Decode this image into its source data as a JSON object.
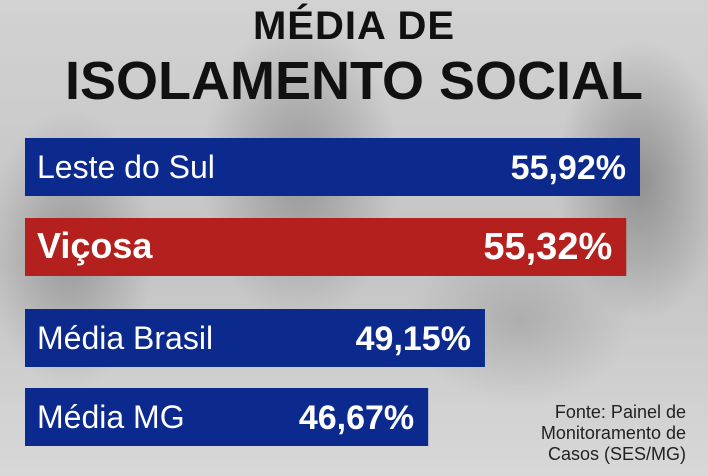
{
  "title_line1": "MÉDIA DE",
  "title_line2": "ISOLAMENTO SOCIAL",
  "source_lines": [
    "Fonte: Painel de",
    "Monitoramento de",
    "Casos (SES/MG)"
  ],
  "chart_data": {
    "type": "bar",
    "orientation": "horizontal",
    "categories": [
      "Leste do Sul",
      "Viçosa",
      "Média Brasil",
      "Média MG"
    ],
    "values": [
      55.92,
      55.32,
      49.15,
      46.67
    ],
    "value_labels": [
      "55,92%",
      "55,32%",
      "49,15%",
      "46,67%"
    ],
    "colors": [
      "#0c2a8e",
      "#b3201d",
      "#0c2a8e",
      "#0c2a8e"
    ],
    "highlight": "Viçosa",
    "unit": "%"
  }
}
